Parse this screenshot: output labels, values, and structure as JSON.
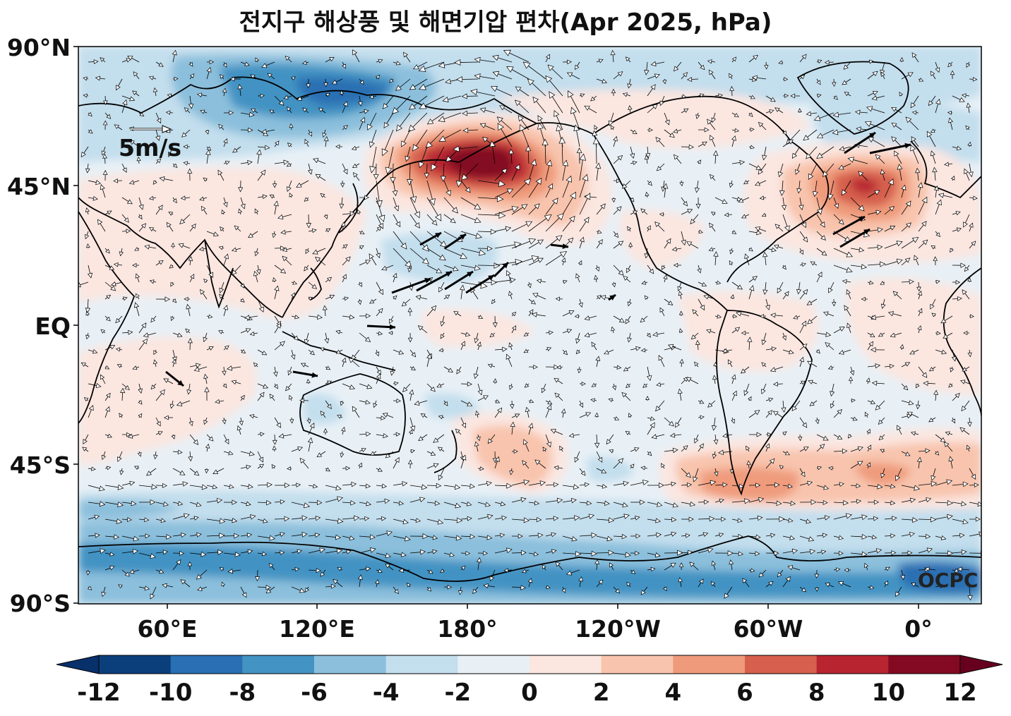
{
  "title": "전지구 해상풍 및 해면기압 편차(Apr 2025, hPa)",
  "lat_labels": [
    "90°N",
    "45°N",
    "EQ",
    "45°S",
    "90°S"
  ],
  "lon_labels": [
    "60°E",
    "120°E",
    "180°",
    "120°W",
    "60°W",
    "0°"
  ],
  "colorbar": {
    "ticks": [
      "-12",
      "-10",
      "-8",
      "-6",
      "-4",
      "-2",
      "0",
      "2",
      "4",
      "6",
      "8",
      "10",
      "12"
    ],
    "colors": [
      "#0a3f7c",
      "#2a6fb3",
      "#4393c3",
      "#8bbfdc",
      "#c3deed",
      "#e8f0f6",
      "#fbe6e0",
      "#f8c4ad",
      "#ef9b7b",
      "#d6604d",
      "#b82530",
      "#830a22"
    ]
  },
  "reference_vector": "5m/s",
  "credit": "OCPC"
}
